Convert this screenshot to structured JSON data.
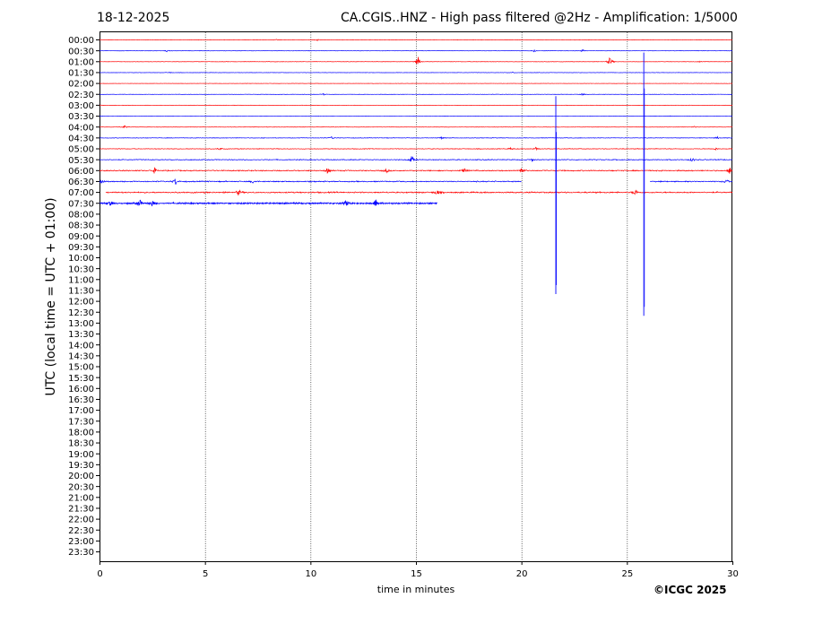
{
  "header": {
    "date": "18-12-2025",
    "title": "CA.CGIS..HNZ - High pass filtered @2Hz - Amplification: 1/5000"
  },
  "footer": {
    "copyright": "©ICGC 2025"
  },
  "colors": {
    "even_trace": "#ff0000",
    "odd_trace": "#0000ff",
    "grid": "#000000"
  },
  "chart_data": {
    "type": "line",
    "subtype": "helicorder",
    "xlabel": "time in minutes",
    "ylabel": "UTC (local time = UTC + 01:00)",
    "xlim": [
      0,
      30
    ],
    "xticks": [
      "0",
      "5",
      "10",
      "15",
      "20",
      "25",
      "30"
    ],
    "vertical_grid_minutes": [
      5,
      10,
      15,
      20,
      25
    ],
    "grid_style": "dotted",
    "rows": [
      "00:00",
      "00:30",
      "01:00",
      "01:30",
      "02:00",
      "02:30",
      "03:00",
      "03:30",
      "04:00",
      "04:30",
      "05:00",
      "05:30",
      "06:00",
      "06:30",
      "07:00",
      "07:30",
      "08:00",
      "08:30",
      "09:00",
      "09:30",
      "10:00",
      "10:30",
      "11:00",
      "11:30",
      "12:00",
      "12:30",
      "13:00",
      "13:30",
      "14:00",
      "14:30",
      "15:00",
      "15:30",
      "16:00",
      "16:30",
      "17:00",
      "17:30",
      "18:00",
      "18:30",
      "19:00",
      "19:30",
      "20:00",
      "20:30",
      "21:00",
      "21:30",
      "22:00",
      "22:30",
      "23:00",
      "23:30"
    ],
    "row_colors": [
      "red",
      "blue"
    ],
    "traces": [
      {
        "row": "00:00",
        "start": 0,
        "end": 30,
        "noise": 0.2,
        "events": [
          {
            "t": 10.3,
            "amp": 0.3
          },
          {
            "t": 8.4,
            "amp": 0.12
          }
        ]
      },
      {
        "row": "00:30",
        "start": 0,
        "end": 30,
        "noise": 0.2,
        "events": [
          {
            "t": 3.2,
            "amp": 0.25
          },
          {
            "t": 20.6,
            "amp": 0.25
          },
          {
            "t": 22.9,
            "amp": 0.3
          }
        ]
      },
      {
        "row": "01:00",
        "start": 0,
        "end": 30,
        "noise": 0.2,
        "events": [
          {
            "t": 15.1,
            "amp": 1.3
          },
          {
            "t": 24.2,
            "amp": 1.3
          },
          {
            "t": 28.4,
            "amp": 0.12
          }
        ]
      },
      {
        "row": "01:30",
        "start": 0,
        "end": 30,
        "noise": 0.2,
        "events": [
          {
            "t": 3.3,
            "amp": 0.12
          },
          {
            "t": 19.6,
            "amp": 0.15
          }
        ]
      },
      {
        "row": "02:00",
        "start": 0,
        "end": 30,
        "noise": 0.15,
        "events": []
      },
      {
        "row": "02:30",
        "start": 0,
        "end": 30,
        "noise": 0.2,
        "events": [
          {
            "t": 10.6,
            "amp": 0.2
          },
          {
            "t": 22.9,
            "amp": 0.25
          }
        ]
      },
      {
        "row": "03:00",
        "start": 0,
        "end": 30,
        "noise": 0.15,
        "events": []
      },
      {
        "row": "03:30",
        "start": 0,
        "end": 30,
        "noise": 0.15,
        "events": [
          {
            "t": 27.0,
            "amp": 0.12
          }
        ]
      },
      {
        "row": "04:00",
        "start": 0,
        "end": 30,
        "noise": 0.2,
        "events": [
          {
            "t": 1.2,
            "amp": 0.35
          },
          {
            "t": 28.2,
            "amp": 0.2
          }
        ]
      },
      {
        "row": "04:30",
        "start": 0,
        "end": 30,
        "noise": 0.3,
        "events": [
          {
            "t": 11.0,
            "amp": 0.3
          },
          {
            "t": 16.2,
            "amp": 0.25
          },
          {
            "t": 29.3,
            "amp": 0.3
          }
        ]
      },
      {
        "row": "05:00",
        "start": 0,
        "end": 30,
        "noise": 0.35,
        "events": [
          {
            "t": 5.7,
            "amp": 0.3
          },
          {
            "t": 19.5,
            "amp": 0.3
          },
          {
            "t": 20.7,
            "amp": 0.5
          },
          {
            "t": 29.2,
            "amp": 0.3
          }
        ]
      },
      {
        "row": "05:30",
        "start": 0,
        "end": 30,
        "noise": 0.45,
        "events": [
          {
            "t": 14.8,
            "amp": 1.0
          },
          {
            "t": 28.1,
            "amp": 0.55
          },
          {
            "t": 20.5,
            "amp": 0.3
          }
        ]
      },
      {
        "row": "06:00",
        "start": 0,
        "end": 30,
        "noise": 0.6,
        "events": [
          {
            "t": 2.6,
            "amp": 0.7
          },
          {
            "t": 10.8,
            "amp": 0.75
          },
          {
            "t": 13.6,
            "amp": 0.55
          },
          {
            "t": 17.3,
            "amp": 0.7
          },
          {
            "t": 20.0,
            "amp": 0.9
          },
          {
            "t": 29.9,
            "amp": 1.0
          }
        ]
      },
      {
        "row": "06:30",
        "start": 0,
        "end": 30,
        "noise": 0.6,
        "gap": [
          20.0,
          26.1
        ],
        "events": [
          {
            "t": 0.1,
            "amp": 0.8
          },
          {
            "t": 3.6,
            "amp": 0.9
          },
          {
            "t": 7.3,
            "amp": 0.5
          },
          {
            "t": 29.7,
            "amp": 0.6
          }
        ]
      },
      {
        "row": "07:00",
        "start": 0.3,
        "end": 30,
        "noise": 0.7,
        "events": [
          {
            "t": 6.6,
            "amp": 0.7
          },
          {
            "t": 16.0,
            "amp": 0.8
          },
          {
            "t": 25.4,
            "amp": 0.8
          }
        ]
      },
      {
        "row": "07:30",
        "start": 0,
        "end": 16.0,
        "noise": 0.75,
        "events": [
          {
            "t": 0.5,
            "amp": 0.7
          },
          {
            "t": 1.9,
            "amp": 1.0
          },
          {
            "t": 2.5,
            "amp": 0.8
          },
          {
            "t": 11.7,
            "amp": 0.8
          },
          {
            "t": 13.1,
            "amp": 1.0
          }
        ]
      }
    ],
    "spikes": [
      {
        "t": 21.63,
        "from": "02:30",
        "to": "11:30",
        "color": "blue"
      },
      {
        "t": 25.8,
        "from": "00:30",
        "to": "12:30",
        "color": "blue"
      }
    ]
  }
}
